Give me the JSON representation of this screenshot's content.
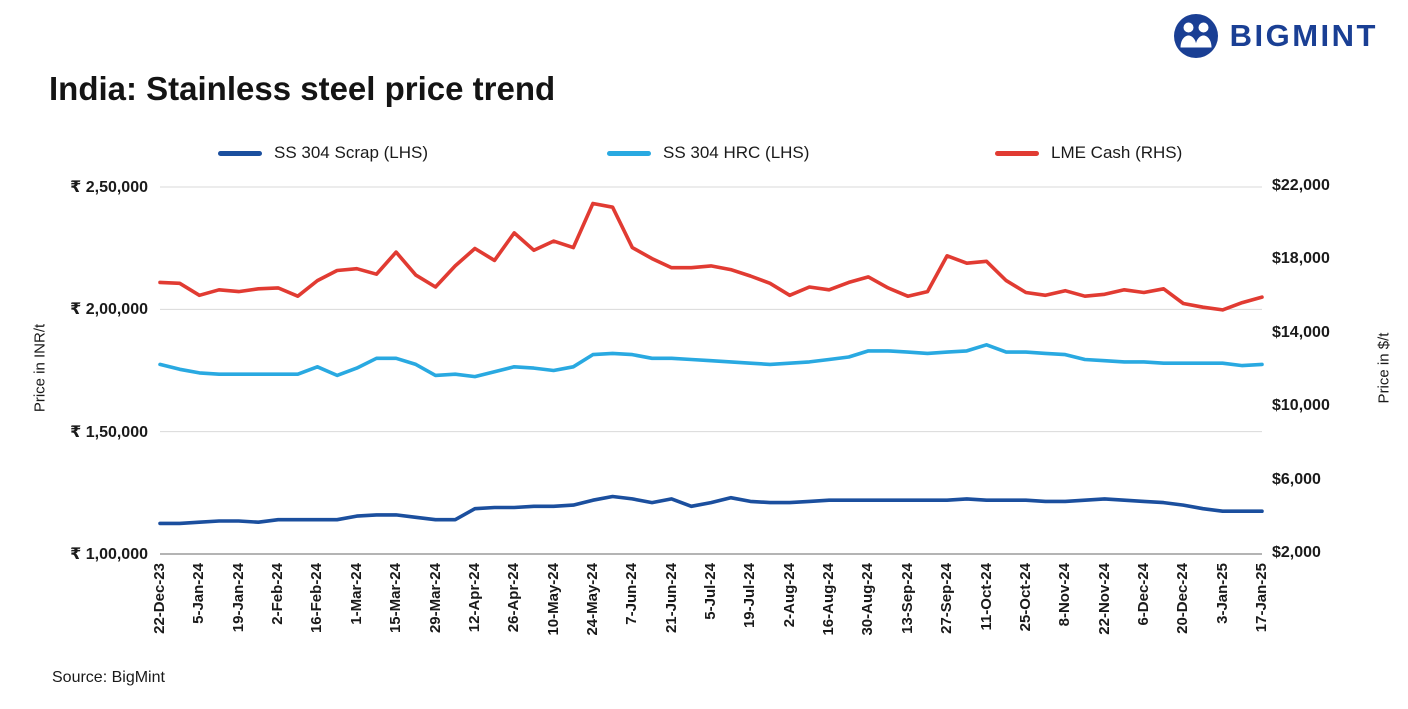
{
  "logo": {
    "text": "BIGMINT",
    "color": "#1a3f94"
  },
  "title": "India: Stainless steel price trend",
  "source": "Source: BigMint",
  "legend": [
    {
      "label": "SS 304 Scrap (LHS)",
      "color": "#1b4f9e"
    },
    {
      "label": "SS 304 HRC (LHS)",
      "color": "#29a9e1"
    },
    {
      "label": "LME Cash (RHS)",
      "color": "#e13b32"
    }
  ],
  "left_axis": {
    "title": "Price in INR/t",
    "ticks": [
      "₹ 2,50,000",
      "₹ 2,00,000",
      "₹ 1,50,000",
      "₹ 1,00,000"
    ],
    "min": 100000,
    "max": 250000
  },
  "right_axis": {
    "title": "Price in $/t",
    "ticks": [
      "$22,000",
      "$18,000",
      "$14,000",
      "$10,000",
      "$6,000",
      "$2,000"
    ],
    "min": 2000,
    "max": 22000
  },
  "chart_data": {
    "type": "line",
    "title": "India: Stainless steel price trend",
    "grid": "horizontal",
    "legend_position": "top",
    "x_tick_every": 2,
    "left_ylim": [
      100000,
      250000
    ],
    "right_ylim": [
      2000,
      22000
    ],
    "x": [
      "22-Dec-23",
      "29-Dec-23",
      "5-Jan-24",
      "12-Jan-24",
      "19-Jan-24",
      "26-Jan-24",
      "2-Feb-24",
      "9-Feb-24",
      "16-Feb-24",
      "23-Feb-24",
      "1-Mar-24",
      "8-Mar-24",
      "15-Mar-24",
      "22-Mar-24",
      "29-Mar-24",
      "5-Apr-24",
      "12-Apr-24",
      "19-Apr-24",
      "26-Apr-24",
      "3-May-24",
      "10-May-24",
      "17-May-24",
      "24-May-24",
      "31-May-24",
      "7-Jun-24",
      "14-Jun-24",
      "21-Jun-24",
      "28-Jun-24",
      "5-Jul-24",
      "12-Jul-24",
      "19-Jul-24",
      "26-Jul-24",
      "2-Aug-24",
      "9-Aug-24",
      "16-Aug-24",
      "23-Aug-24",
      "30-Aug-24",
      "6-Sep-24",
      "13-Sep-24",
      "20-Sep-24",
      "27-Sep-24",
      "4-Oct-24",
      "11-Oct-24",
      "18-Oct-24",
      "25-Oct-24",
      "1-Nov-24",
      "8-Nov-24",
      "15-Nov-24",
      "22-Nov-24",
      "29-Nov-24",
      "6-Dec-24",
      "13-Dec-24",
      "20-Dec-24",
      "27-Dec-24",
      "3-Jan-25",
      "10-Jan-25",
      "17-Jan-25"
    ],
    "series": [
      {
        "name": "SS 304 Scrap (LHS)",
        "axis": "left",
        "unit": "INR/t",
        "color": "#1b4f9e",
        "values": [
          112500,
          112500,
          113000,
          113500,
          113500,
          113000,
          114000,
          114000,
          114000,
          114000,
          115500,
          116000,
          116000,
          115000,
          114000,
          114000,
          118500,
          119000,
          119000,
          119500,
          119500,
          120000,
          122000,
          123500,
          122500,
          121000,
          122500,
          119500,
          121000,
          123000,
          121500,
          121000,
          121000,
          121500,
          122000,
          122000,
          122000,
          122000,
          122000,
          122000,
          122000,
          122500,
          122000,
          122000,
          122000,
          121500,
          121500,
          122000,
          122500,
          122000,
          121500,
          121000,
          120000,
          118500,
          117500,
          117500,
          117500
        ]
      },
      {
        "name": "SS 304 HRC (LHS)",
        "axis": "left",
        "unit": "INR/t",
        "color": "#29a9e1",
        "values": [
          177500,
          175500,
          174000,
          173500,
          173500,
          173500,
          173500,
          173500,
          176500,
          173000,
          176000,
          180000,
          180000,
          177500,
          173000,
          173500,
          172500,
          174500,
          176500,
          176000,
          175000,
          176500,
          181500,
          182000,
          181500,
          180000,
          180000,
          179500,
          179000,
          178500,
          178000,
          177500,
          178000,
          178500,
          179500,
          180500,
          183000,
          183000,
          182500,
          182000,
          182500,
          183000,
          185500,
          182500,
          182500,
          182000,
          181500,
          179500,
          179000,
          178500,
          178500,
          178000,
          178000,
          178000,
          178000,
          177000,
          177500
        ]
      },
      {
        "name": "LME Cash (RHS)",
        "axis": "right",
        "unit": "$/t",
        "color": "#e13b32",
        "values": [
          16800,
          16750,
          16100,
          16400,
          16300,
          16450,
          16500,
          16050,
          16900,
          17450,
          17550,
          17250,
          18450,
          17200,
          16550,
          17700,
          18650,
          18000,
          19500,
          18550,
          19050,
          18700,
          21100,
          20900,
          18700,
          18100,
          17600,
          17600,
          17700,
          17500,
          17150,
          16750,
          16100,
          16550,
          16400,
          16800,
          17100,
          16500,
          16050,
          16300,
          18250,
          17850,
          17950,
          16900,
          16250,
          16100,
          16350,
          16050,
          16150,
          16400,
          16250,
          16450,
          15650,
          15450,
          15300,
          15700,
          16000
        ]
      }
    ]
  }
}
